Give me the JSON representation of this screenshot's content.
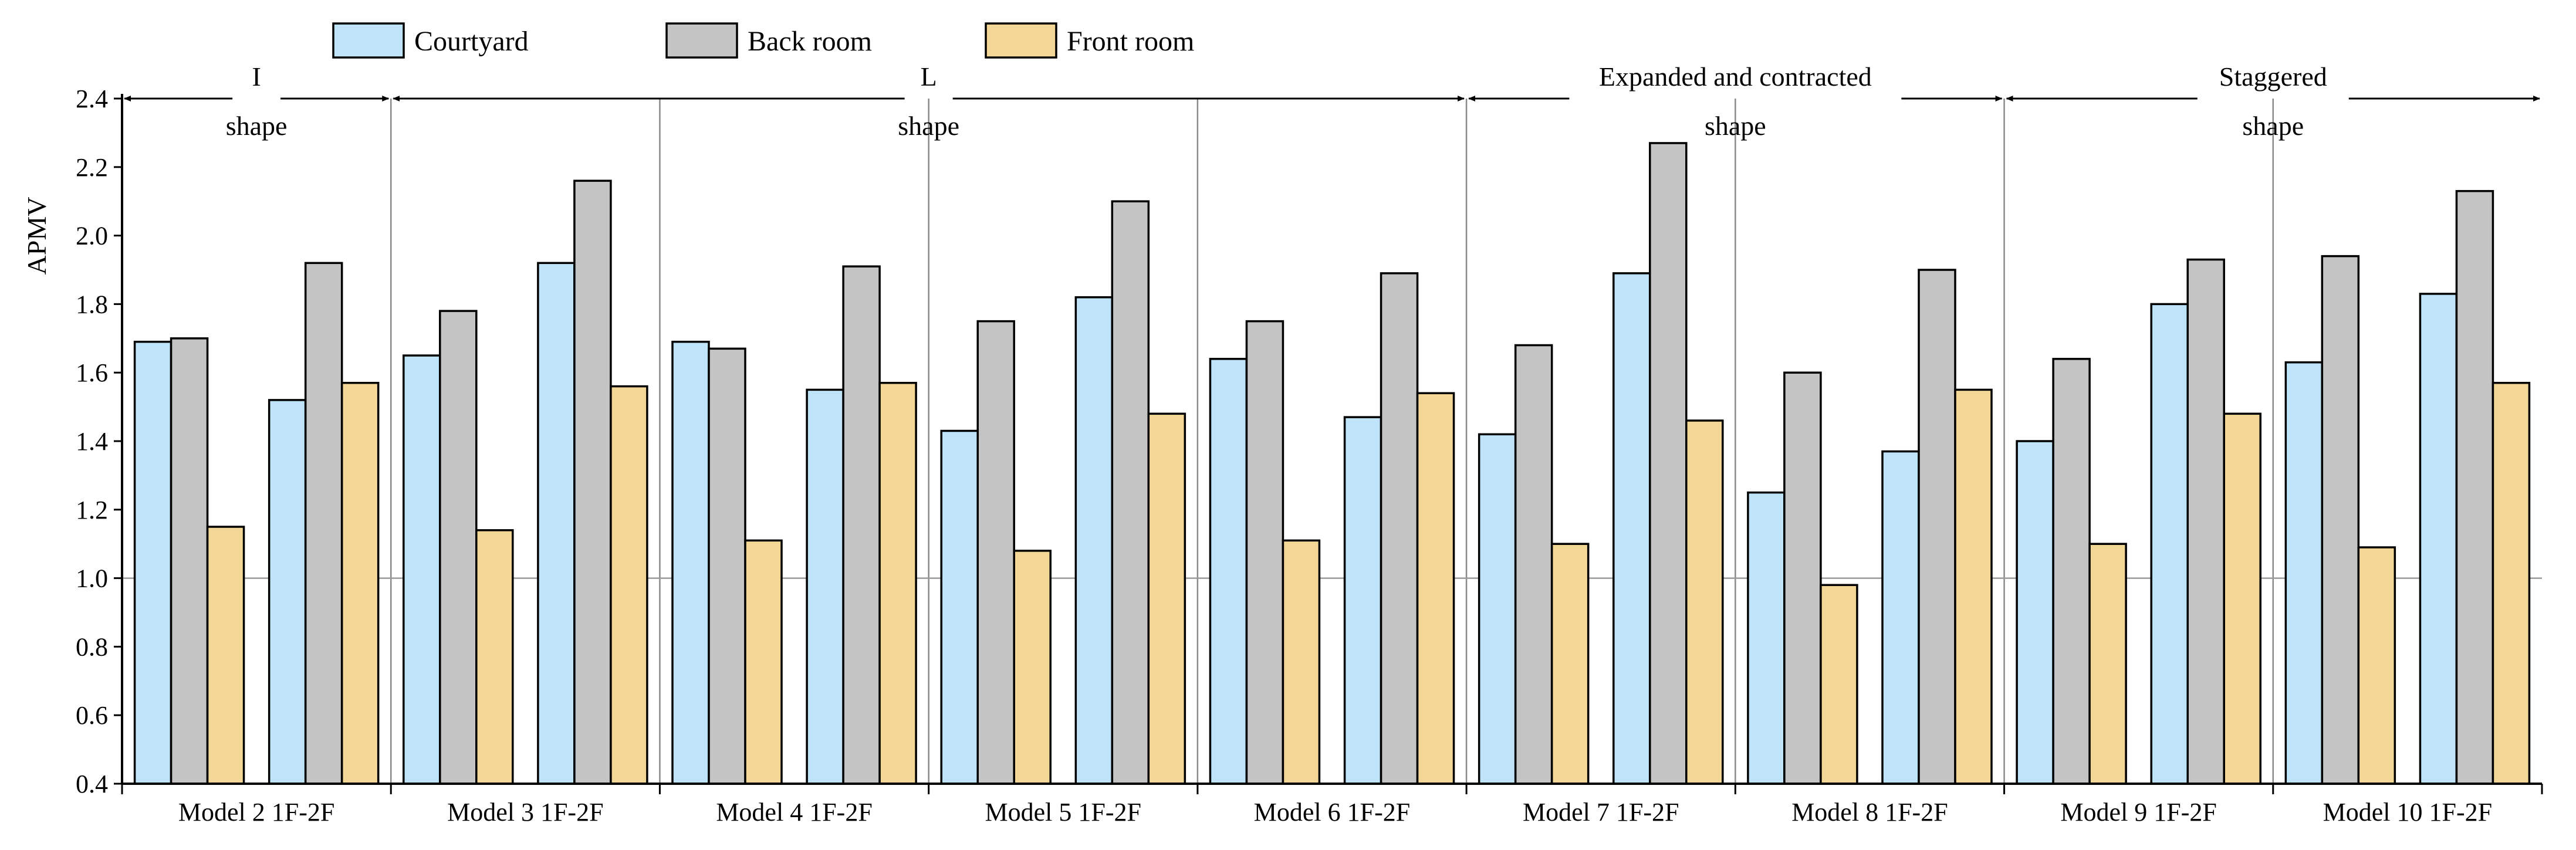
{
  "chart_data": {
    "type": "bar",
    "ylabel": "APMV",
    "ylim": [
      0.4,
      2.4
    ],
    "yticks": [
      "0.4",
      "0.6",
      "0.8",
      "1.0",
      "1.2",
      "1.4",
      "1.6",
      "1.8",
      "2.0",
      "2.2",
      "2.4"
    ],
    "reference_line": 1.0,
    "categories": [
      "Model 2 1F-2F",
      "Model 3 1F-2F",
      "Model 4 1F-2F",
      "Model 5 1F-2F",
      "Model 6 1F-2F",
      "Model 7 1F-2F",
      "Model 8 1F-2F",
      "Model 9 1F-2F",
      "Model 10 1F-2F"
    ],
    "floors": [
      "1F",
      "2F"
    ],
    "series": [
      {
        "name": "Courtyard",
        "color": "#bfe4fa",
        "values": [
          [
            1.69,
            1.52
          ],
          [
            1.65,
            1.92
          ],
          [
            1.69,
            1.55
          ],
          [
            1.43,
            1.82
          ],
          [
            1.64,
            1.47
          ],
          [
            1.42,
            1.89
          ],
          [
            1.25,
            1.37
          ],
          [
            1.4,
            1.8
          ],
          [
            1.63,
            1.83
          ]
        ]
      },
      {
        "name": "Back room",
        "color": "#c4c4c4",
        "values": [
          [
            1.7,
            1.92
          ],
          [
            1.78,
            2.16
          ],
          [
            1.67,
            1.91
          ],
          [
            1.75,
            2.1
          ],
          [
            1.75,
            1.89
          ],
          [
            1.68,
            2.27
          ],
          [
            1.6,
            1.9
          ],
          [
            1.64,
            1.93
          ],
          [
            1.94,
            2.13
          ]
        ]
      },
      {
        "name": "Front room",
        "color": "#f3d796",
        "values": [
          [
            1.15,
            1.57
          ],
          [
            1.14,
            1.56
          ],
          [
            1.11,
            1.57
          ],
          [
            1.08,
            1.48
          ],
          [
            1.11,
            1.54
          ],
          [
            1.1,
            1.46
          ],
          [
            0.98,
            1.55
          ],
          [
            1.1,
            1.48
          ],
          [
            1.09,
            1.57
          ]
        ]
      }
    ],
    "groups": [
      {
        "label_line1": "I",
        "label_line2": "shape",
        "start_category": 0,
        "end_category": 0
      },
      {
        "label_line1": "L",
        "label_line2": "shape",
        "start_category": 1,
        "end_category": 4
      },
      {
        "label_line1": "Expanded and contracted",
        "label_line2": "shape",
        "start_category": 5,
        "end_category": 6
      },
      {
        "label_line1": "Staggered",
        "label_line2": "shape",
        "start_category": 7,
        "end_category": 8
      }
    ],
    "legend_position": "top"
  }
}
